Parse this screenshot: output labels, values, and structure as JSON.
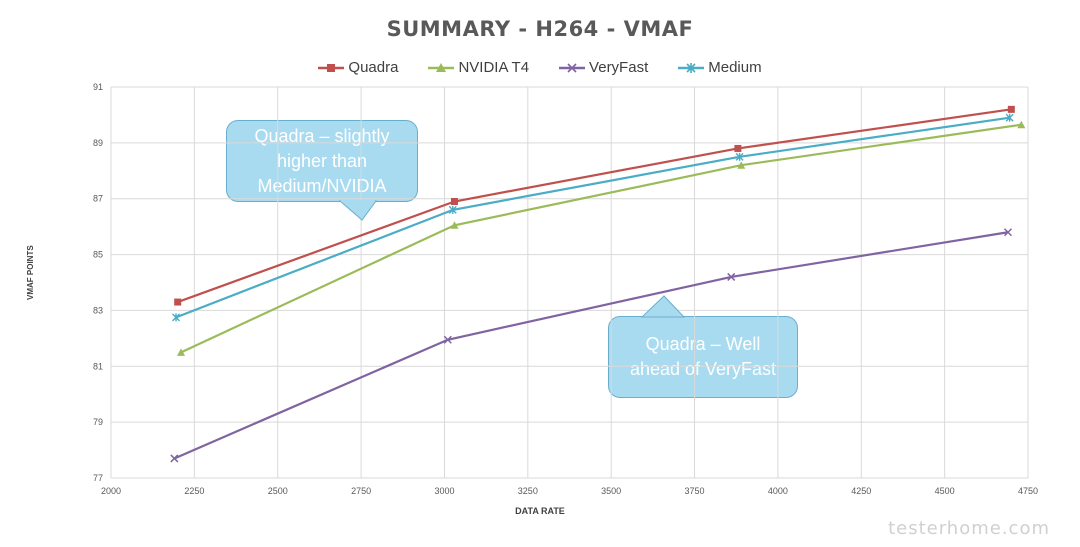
{
  "chart_data": {
    "type": "line",
    "title": "SUMMARY - H264 - VMAF",
    "xlabel": "DATA RATE",
    "ylabel": "VMAF POINTS",
    "xlim": [
      2000,
      4750
    ],
    "ylim": [
      77,
      91
    ],
    "x_ticks": [
      "2000",
      "2250",
      "2500",
      "2750",
      "3000",
      "3250",
      "3500",
      "3750",
      "4000",
      "4250",
      "4500",
      "4750"
    ],
    "y_ticks": [
      "77",
      "79",
      "81",
      "83",
      "85",
      "87",
      "89",
      "91"
    ],
    "grid": "vertical and horizontal",
    "legend_position": "top",
    "series": [
      {
        "name": "Quadra",
        "color": "#c0504d",
        "marker": "square",
        "x": [
          2200,
          3030,
          3880,
          4700
        ],
        "y": [
          83.3,
          86.9,
          88.8,
          90.2
        ]
      },
      {
        "name": "NVIDIA T4",
        "color": "#9bbb59",
        "marker": "triangle",
        "x": [
          2210,
          3030,
          3890,
          4730
        ],
        "y": [
          81.5,
          86.05,
          88.2,
          89.65
        ]
      },
      {
        "name": "VeryFast",
        "color": "#8064a2",
        "marker": "x",
        "x": [
          2190,
          3010,
          3860,
          4690
        ],
        "y": [
          77.7,
          81.95,
          84.2,
          85.8
        ]
      },
      {
        "name": "Medium",
        "color": "#4bacc6",
        "marker": "star",
        "x": [
          2195,
          3025,
          3885,
          4695
        ],
        "y": [
          82.75,
          86.6,
          88.5,
          89.9
        ]
      }
    ],
    "annotations": [
      {
        "lines": [
          "Quadra – slightly",
          "higher than",
          "Medium/NVIDIA"
        ]
      },
      {
        "lines": [
          "Quadra – Well",
          "ahead of VeryFast"
        ]
      }
    ]
  },
  "watermark": "testerhome.com"
}
